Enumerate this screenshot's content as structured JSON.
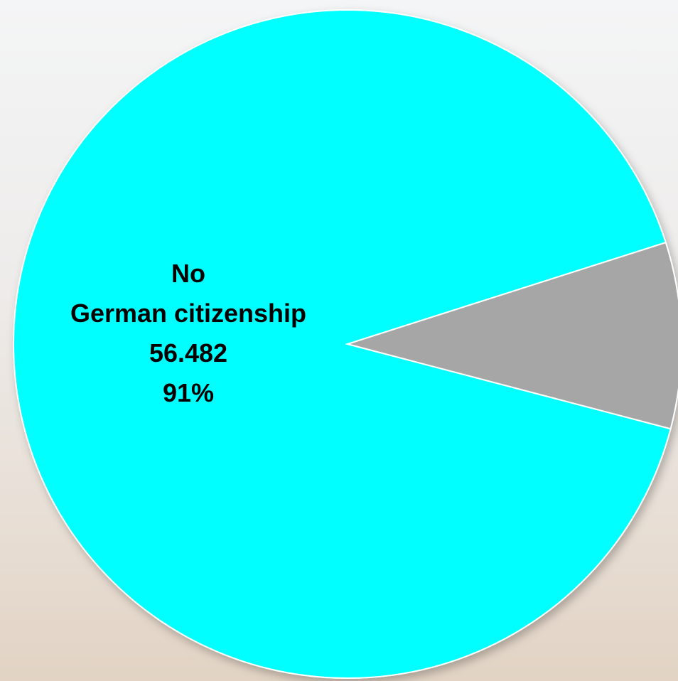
{
  "chart_data": {
    "type": "pie",
    "slices": [
      {
        "category": "No German citizenship",
        "label_lines": [
          "No",
          "German citizenship",
          "56.482",
          "91%"
        ],
        "value": 56482,
        "percent": 91,
        "color": "#00FFFF"
      },
      {
        "category": "",
        "label_lines": [],
        "value": 5586,
        "percent": 9,
        "color": "#A6A6A6"
      }
    ],
    "slice_border_color": "#FFFFFF"
  }
}
